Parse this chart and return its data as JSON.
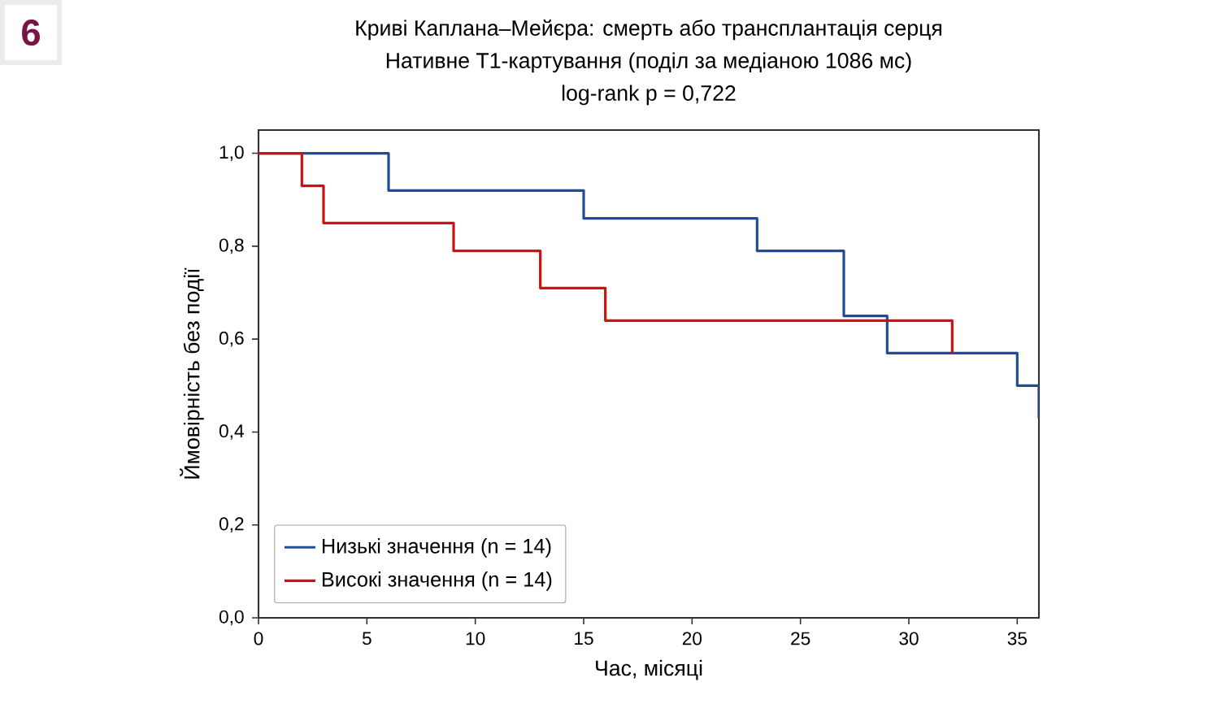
{
  "chart_data": {
    "type": "step",
    "title": "Криві Каплана–Мейєра: смерть або трансплантація серця",
    "subtitle": "Нативне Т1-картування (поділ за медіаною 1086 мс)",
    "annotations": [
      "6",
      "log-rank p = 0,722"
    ],
    "xlabel": "Час, місяці",
    "ylabel": "Ймовірність без події",
    "series": [
      {
        "name": "Низькі значення (n = 14)",
        "color": "#1f4e99",
        "x": [
          0,
          6,
          15,
          23,
          27,
          29,
          35,
          36
        ],
        "values": [
          1.0,
          0.92,
          0.86,
          0.79,
          0.65,
          0.57,
          0.5,
          0.43
        ]
      },
      {
        "name": "Високі значення (n = 14)",
        "color": "#cc1111",
        "x": [
          0,
          2,
          3,
          9,
          13,
          16,
          32
        ],
        "values": [
          1.0,
          0.93,
          0.85,
          0.79,
          0.71,
          0.64,
          0.57
        ]
      }
    ],
    "xlim": [
      0,
      36
    ],
    "ylim": [
      0,
      1.05
    ],
    "xticks": [
      0,
      5,
      10,
      15,
      20,
      25,
      30,
      35
    ],
    "yticks": [
      {
        "value": 0,
        "label": "0,0"
      },
      {
        "value": 0.2,
        "label": "0,2"
      },
      {
        "value": 0.4,
        "label": "0,4"
      },
      {
        "value": 0.6,
        "label": "0,6"
      },
      {
        "value": 0.8,
        "label": "0,8"
      },
      {
        "value": 1.0,
        "label": "1,0"
      }
    ],
    "legend": "bottom left",
    "grid": false
  }
}
